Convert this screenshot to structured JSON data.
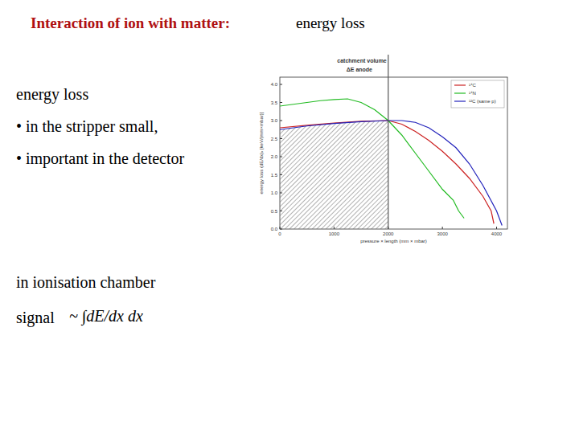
{
  "slide": {
    "title": "Interaction of ion with matter:",
    "title_suffix": "energy loss",
    "heading": "energy loss",
    "bullets": [
      "• in the stripper small,",
      "• important in the detector"
    ],
    "chamber": "in ionisation chamber",
    "signal": "signal",
    "formula": "~ ∫dE/dx dx"
  },
  "chart_data": {
    "type": "line",
    "title": "catchment volume",
    "subtitle": "ΔE anode",
    "x_label": "pressure × length   (mm × mbar)",
    "y_label": "energy loss (dE/dx)ₓ  [keV/(mm×mbar)]",
    "xlim": [
      0,
      4200
    ],
    "xticks": [
      0,
      1000,
      2000,
      3000,
      4000
    ],
    "ylim": [
      0,
      4.2
    ],
    "yticks": [
      {
        "value": 0,
        "label": "0.0"
      },
      {
        "value": 0.5,
        "label": "0.5"
      },
      {
        "value": 1,
        "label": "1.0"
      },
      {
        "value": 1.5,
        "label": "1.5"
      },
      {
        "value": 2,
        "label": "2.0"
      },
      {
        "value": 2.5,
        "label": "2.5"
      },
      {
        "value": 3,
        "label": "3.0"
      },
      {
        "value": 3.5,
        "label": "3.5"
      },
      {
        "value": 4,
        "label": "4.0"
      }
    ],
    "boundary": {
      "x": 2000
    },
    "legend": "upper right",
    "grid": false,
    "series": [
      {
        "name": "¹⁴C",
        "color": "#cc2222",
        "x": [
          0,
          500,
          1000,
          1500,
          2000,
          2250,
          2500,
          2750,
          3000,
          3250,
          3500,
          3750,
          3900,
          3950
        ],
        "values": [
          2.8,
          2.87,
          2.93,
          2.98,
          3.0,
          2.9,
          2.7,
          2.45,
          2.15,
          1.8,
          1.4,
          0.9,
          0.5,
          0.15
        ]
      },
      {
        "name": "¹⁴N",
        "color": "#22bb22",
        "x": [
          0,
          250,
          500,
          750,
          1000,
          1250,
          1500,
          1750,
          2000,
          2250,
          2500,
          2750,
          3000,
          3200,
          3300,
          3400
        ],
        "values": [
          3.4,
          3.45,
          3.5,
          3.55,
          3.58,
          3.6,
          3.5,
          3.3,
          3.0,
          2.6,
          2.1,
          1.6,
          1.1,
          0.8,
          0.5,
          0.3
        ]
      },
      {
        "name": "¹²C (same p)",
        "color": "#2222bb",
        "x": [
          0,
          500,
          1000,
          1500,
          2000,
          2250,
          2500,
          2750,
          3000,
          3250,
          3500,
          3750,
          4000,
          4100
        ],
        "values": [
          2.75,
          2.85,
          2.92,
          2.97,
          3.0,
          3.0,
          2.95,
          2.8,
          2.55,
          2.25,
          1.8,
          1.2,
          0.5,
          0.1
        ]
      }
    ]
  }
}
